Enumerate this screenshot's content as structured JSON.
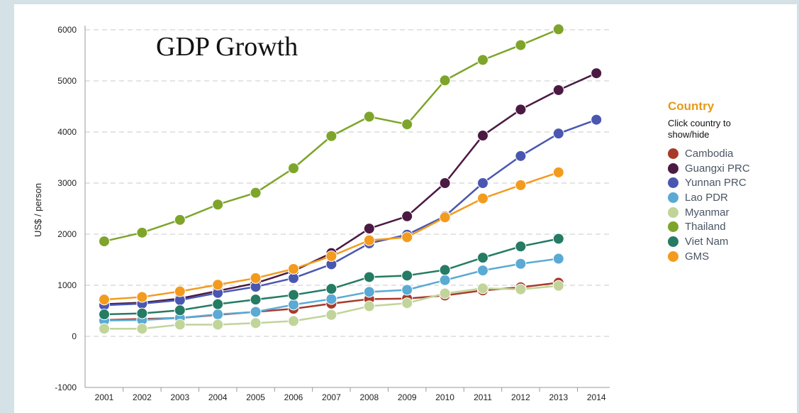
{
  "chart_data": {
    "type": "line",
    "title": "GDP Growth",
    "ylabel": "US$ / person",
    "xlabel": "",
    "ylim": [
      -1000,
      6000
    ],
    "yticks": [
      -1000,
      0,
      1000,
      2000,
      3000,
      4000,
      5000,
      6000
    ],
    "categories": [
      "2001",
      "2002",
      "2003",
      "2004",
      "2005",
      "2006",
      "2007",
      "2008",
      "2009",
      "2010",
      "2011",
      "2012",
      "2013",
      "2014"
    ],
    "grid": true,
    "legend_position": "right",
    "legend_title": "Country",
    "legend_hint": "Click country to show/hide",
    "series": [
      {
        "name": "Cambodia",
        "color": "#a83a2a",
        "values": [
          320,
          340,
          360,
          420,
          480,
          540,
          640,
          730,
          740,
          800,
          900,
          960,
          1050,
          null
        ]
      },
      {
        "name": "Guangxi PRC",
        "color": "#4b1a43",
        "values": [
          630,
          660,
          740,
          890,
          1040,
          1280,
          1630,
          2110,
          2350,
          3000,
          3930,
          4440,
          4820,
          5150
        ]
      },
      {
        "name": "Yunnan PRC",
        "color": "#4a57b1",
        "values": [
          610,
          640,
          710,
          850,
          970,
          1140,
          1410,
          1820,
          1990,
          2350,
          3000,
          3530,
          3970,
          4240
        ]
      },
      {
        "name": "Lao PDR",
        "color": "#5aaad4",
        "values": [
          310,
          320,
          360,
          430,
          480,
          620,
          730,
          870,
          910,
          1100,
          1290,
          1420,
          1520,
          null
        ]
      },
      {
        "name": "Myanmar",
        "color": "#c1d49a",
        "values": [
          150,
          150,
          230,
          230,
          260,
          300,
          420,
          590,
          650,
          840,
          940,
          920,
          990,
          null
        ]
      },
      {
        "name": "Thailand",
        "color": "#7ea52a",
        "values": [
          1860,
          2030,
          2280,
          2580,
          2810,
          3290,
          3920,
          4300,
          4150,
          5010,
          5410,
          5700,
          6010,
          null
        ]
      },
      {
        "name": "Viet Nam",
        "color": "#257b63",
        "values": [
          430,
          450,
          510,
          630,
          720,
          810,
          930,
          1160,
          1190,
          1300,
          1540,
          1760,
          1910,
          null
        ]
      },
      {
        "name": "GMS",
        "color": "#f39b1e",
        "values": [
          720,
          770,
          880,
          1010,
          1140,
          1320,
          1570,
          1880,
          1940,
          2330,
          2700,
          2960,
          3210,
          null
        ]
      }
    ]
  }
}
